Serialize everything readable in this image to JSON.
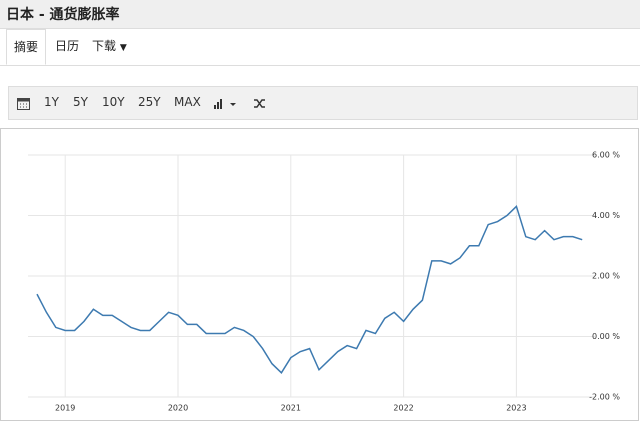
{
  "header": {
    "title": "日本 - 通货膨胀率"
  },
  "tabs": [
    "摘要",
    "日历",
    "下载"
  ],
  "toolbar": [
    "1Y",
    "5Y",
    "10Y",
    "25Y",
    "MAX"
  ],
  "chart_data": {
    "type": "line",
    "categories": [
      null,
      null,
      null,
      "2019",
      null,
      null,
      null,
      null,
      null,
      null,
      null,
      null,
      null,
      null,
      null,
      "2020",
      null,
      null,
      null,
      null,
      null,
      null,
      null,
      null,
      null,
      null,
      null,
      "2021",
      null,
      null,
      null,
      null,
      null,
      null,
      null,
      null,
      null,
      null,
      null,
      "2022",
      null,
      null,
      null,
      null,
      null,
      null,
      null,
      null,
      null,
      null,
      null,
      "2023",
      null,
      null,
      null,
      null,
      null,
      null,
      null
    ],
    "series": [
      {
        "color": "#3d7ab0",
        "values": [
          1.4,
          0.8,
          0.3,
          0.2,
          0.2,
          0.5,
          0.9,
          0.7,
          0.7,
          0.5,
          0.3,
          0.2,
          0.2,
          0.5,
          0.8,
          0.7,
          0.4,
          0.4,
          0.1,
          0.1,
          0.1,
          0.3,
          0.2,
          0.0,
          -0.4,
          -0.9,
          -1.2,
          -0.7,
          -0.5,
          -0.4,
          -1.1,
          -0.8,
          -0.5,
          -0.3,
          -0.4,
          0.2,
          0.1,
          0.6,
          0.8,
          0.5,
          0.9,
          1.2,
          2.5,
          2.5,
          2.4,
          2.6,
          3.0,
          3.0,
          3.7,
          3.8,
          4.0,
          4.3,
          3.3,
          3.2,
          3.5,
          3.2,
          3.3,
          3.3,
          3.2
        ]
      }
    ],
    "ylim": [
      -2,
      6
    ],
    "yticks": [
      {
        "value": 6,
        "label": "6.00 %"
      },
      {
        "value": 4,
        "label": "4.00 %"
      },
      {
        "value": 2,
        "label": "2.00 %"
      },
      {
        "value": 0,
        "label": "0.00 %"
      },
      {
        "value": -2,
        "label": "-2.00 %"
      }
    ],
    "grid": true
  }
}
